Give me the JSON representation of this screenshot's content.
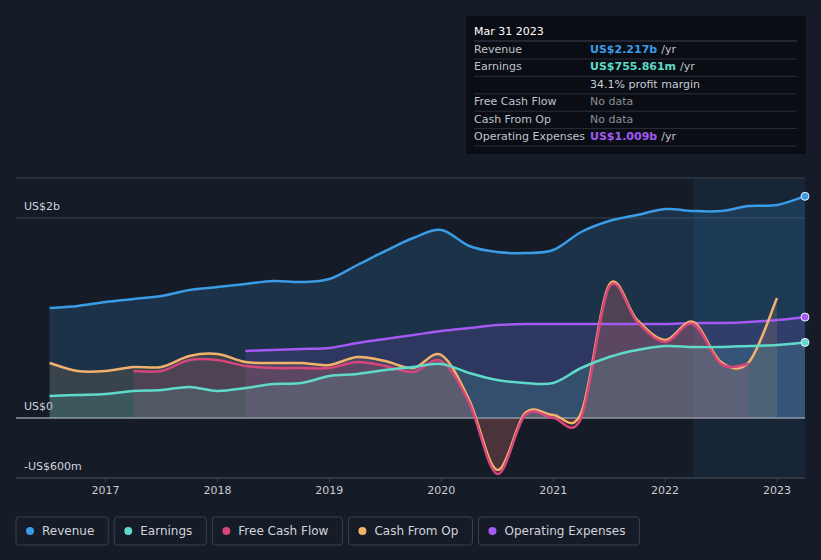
{
  "chart_data": {
    "type": "line",
    "x": [
      2016.5,
      2016.75,
      2017,
      2017.25,
      2017.5,
      2017.75,
      2018,
      2018.25,
      2018.5,
      2018.75,
      2019,
      2019.25,
      2019.5,
      2019.75,
      2020,
      2020.25,
      2020.5,
      2020.75,
      2021,
      2021.25,
      2021.5,
      2021.75,
      2022,
      2022.25,
      2022.5,
      2022.75,
      2023,
      2023.25
    ],
    "xlim": [
      2016.2,
      2023.25
    ],
    "xticks": [
      2017,
      2018,
      2019,
      2020,
      2021,
      2022,
      2023
    ],
    "ylim": [
      -600,
      2400
    ],
    "yticks": [
      {
        "value": -600,
        "label": "-US$600m"
      },
      {
        "value": 0,
        "label": "US$0"
      },
      {
        "value": 2000,
        "label": "US$2b"
      }
    ],
    "grid": true,
    "legend": "bottom",
    "series": [
      {
        "name": "Revenue",
        "color": "#3a9be6",
        "values": [
          1100,
          1120,
          1160,
          1190,
          1220,
          1280,
          1310,
          1340,
          1370,
          1360,
          1390,
          1530,
          1670,
          1800,
          1880,
          1720,
          1660,
          1650,
          1680,
          1860,
          1970,
          2030,
          2090,
          2070,
          2070,
          2120,
          2130,
          2217
        ]
      },
      {
        "name": "Earnings",
        "color": "#5fd9c9",
        "values": [
          220,
          230,
          240,
          270,
          280,
          310,
          270,
          300,
          340,
          350,
          420,
          440,
          480,
          510,
          540,
          450,
          380,
          350,
          350,
          500,
          610,
          680,
          720,
          710,
          710,
          720,
          730,
          756
        ]
      },
      {
        "name": "Free Cash Flow",
        "color": "#d6457b",
        "values": [
          null,
          null,
          null,
          470,
          470,
          580,
          580,
          520,
          500,
          500,
          500,
          560,
          520,
          460,
          570,
          150,
          -560,
          30,
          0,
          0,
          1310,
          960,
          760,
          940,
          540,
          540,
          null,
          null
        ]
      },
      {
        "name": "Cash From Op",
        "color": "#f2b26b",
        "values": [
          550,
          470,
          470,
          510,
          510,
          620,
          640,
          560,
          550,
          550,
          530,
          610,
          570,
          500,
          630,
          180,
          -520,
          50,
          30,
          50,
          1330,
          980,
          780,
          960,
          560,
          560,
          1200,
          null
        ]
      },
      {
        "name": "Operating Expenses",
        "color": "#a359f2",
        "values": [
          null,
          null,
          null,
          null,
          null,
          null,
          null,
          670,
          680,
          690,
          700,
          750,
          790,
          830,
          870,
          900,
          930,
          940,
          940,
          940,
          940,
          940,
          940,
          950,
          950,
          960,
          980,
          1009
        ]
      }
    ],
    "annotation": {
      "date": "Mar 31 2023",
      "rows": [
        {
          "label": "Revenue",
          "value": "US$2.217b",
          "unit": "/yr"
        },
        {
          "label": "Earnings",
          "value": "US$755.861m",
          "unit": "/yr"
        },
        {
          "value": "34.1% profit margin"
        },
        {
          "label": "Free Cash Flow",
          "value": "No data"
        },
        {
          "label": "Cash From Op",
          "value": "No data"
        },
        {
          "label": "Operating Expenses",
          "value": "US$1.009b",
          "unit": "/yr"
        }
      ]
    }
  }
}
